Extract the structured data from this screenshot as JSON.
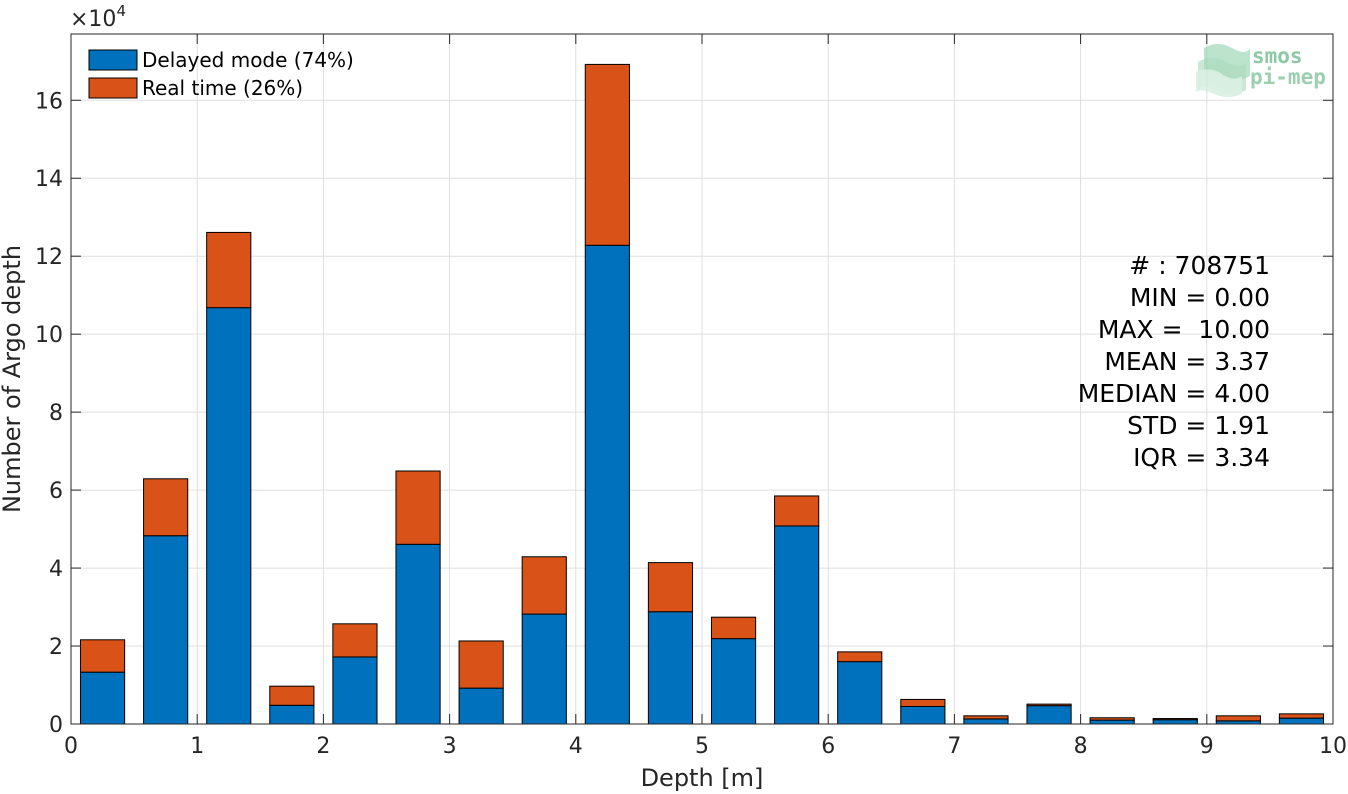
{
  "chart_data": {
    "type": "bar",
    "stacked": true,
    "x": [
      0.25,
      0.75,
      1.25,
      1.75,
      2.25,
      2.75,
      3.25,
      3.75,
      4.25,
      4.75,
      5.25,
      5.75,
      6.25,
      6.75,
      7.25,
      7.75,
      8.25,
      8.75,
      9.25,
      9.75
    ],
    "series": [
      {
        "name": "Delayed mode (74%)",
        "color": "#0072bd",
        "values": [
          13300,
          48300,
          106800,
          4800,
          17200,
          46100,
          9200,
          28200,
          122800,
          28800,
          21900,
          50800,
          16000,
          4500,
          1300,
          4700,
          1000,
          1100,
          800,
          1500
        ]
      },
      {
        "name": "Real time (26%)",
        "color": "#d95319",
        "values": [
          8300,
          14600,
          19300,
          4900,
          8500,
          18800,
          12100,
          14700,
          46400,
          12600,
          5500,
          7700,
          2500,
          1800,
          800,
          400,
          600,
          300,
          1300,
          1100
        ]
      }
    ],
    "xlabel": "Depth [m]",
    "ylabel": "Number of Argo depth",
    "xlim": [
      0,
      10
    ],
    "ylim": [
      0,
      177000
    ],
    "xticks": [
      "0",
      "1",
      "2",
      "3",
      "4",
      "5",
      "6",
      "7",
      "8",
      "9",
      "10"
    ],
    "yticks": [
      "0",
      "2",
      "4",
      "6",
      "8",
      "10",
      "12",
      "14",
      "16"
    ],
    "y_multiplier_label": "×10",
    "y_multiplier_exponent": "4",
    "grid": true,
    "legend_position": "top-left",
    "stats": [
      "# : 708751",
      "MIN = 0.00",
      "MAX =  10.00",
      "MEAN = 3.37",
      "MEDIAN = 4.00",
      "STD = 1.91",
      "IQR = 3.34"
    ],
    "logo": [
      "smos",
      "pi-mep"
    ]
  }
}
